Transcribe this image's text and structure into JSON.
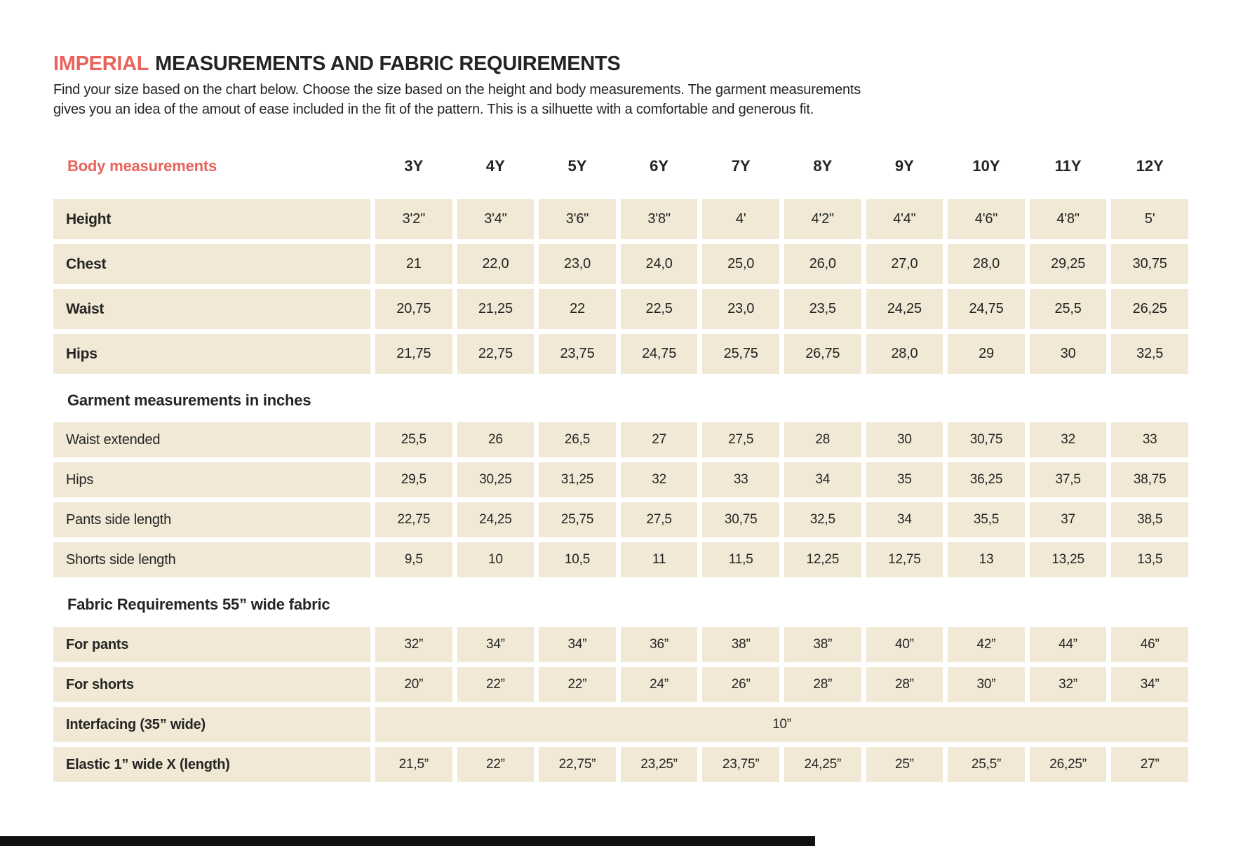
{
  "page": {
    "title": {
      "accent": "IMPERIAL",
      "rest": "MEASUREMENTS AND FABRIC REQUIREMENTS"
    },
    "intro": {
      "line1": "Find your size based on the chart below. Choose the size based on the height and body measurements. The garment measurements",
      "line2": "gives you an idea of the amout of ease included in the fit of the pattern. This is a silhuette with a comfortable and generous fit."
    }
  },
  "colors": {
    "accent_red": "#e9635c",
    "cell_beige": "#f1e9d5",
    "text_dark": "#242424",
    "footer_bar_black": "#111111"
  },
  "chart_data": {
    "type": "table",
    "title": "IMPERIAL MEASUREMENTS AND FABRIC REQUIREMENTS",
    "columns_label": "Body measurements",
    "sizes": [
      "3Y",
      "4Y",
      "5Y",
      "6Y",
      "7Y",
      "8Y",
      "9Y",
      "10Y",
      "11Y",
      "12Y"
    ],
    "sections": [
      {
        "kind": "body",
        "heading": null,
        "rows": [
          {
            "label": "Height",
            "bold": true,
            "values": [
              "3'2\"",
              "3'4\"",
              "3'6\"",
              "3'8\"",
              "4'",
              "4'2\"",
              "4'4\"",
              "4'6\"",
              "4'8\"",
              "5'"
            ]
          },
          {
            "label": "Chest",
            "bold": true,
            "values": [
              "21",
              "22,0",
              "23,0",
              "24,0",
              "25,0",
              "26,0",
              "27,0",
              "28,0",
              "29,25",
              "30,75"
            ]
          },
          {
            "label": "Waist",
            "bold": true,
            "values": [
              "20,75",
              "21,25",
              "22",
              "22,5",
              "23,0",
              "23,5",
              "24,25",
              "24,75",
              "25,5",
              "26,25"
            ]
          },
          {
            "label": "Hips",
            "bold": true,
            "values": [
              "21,75",
              "22,75",
              "23,75",
              "24,75",
              "25,75",
              "26,75",
              "28,0",
              "29",
              "30",
              "32,5"
            ]
          }
        ]
      },
      {
        "kind": "garment",
        "heading": "Garment measurements in inches",
        "rows": [
          {
            "label": "Waist extended",
            "bold": false,
            "values": [
              "25,5",
              "26",
              "26,5",
              "27",
              "27,5",
              "28",
              "30",
              "30,75",
              "32",
              "33"
            ]
          },
          {
            "label": "Hips",
            "bold": false,
            "values": [
              "29,5",
              "30,25",
              "31,25",
              "32",
              "33",
              "34",
              "35",
              "36,25",
              "37,5",
              "38,75"
            ]
          },
          {
            "label": "Pants side length",
            "bold": false,
            "values": [
              "22,75",
              "24,25",
              "25,75",
              "27,5",
              "30,75",
              "32,5",
              "34",
              "35,5",
              "37",
              "38,5"
            ]
          },
          {
            "label": "Shorts side length",
            "bold": false,
            "values": [
              "9,5",
              "10",
              "10,5",
              "11",
              "11,5",
              "12,25",
              "12,75",
              "13",
              "13,25",
              "13,5"
            ]
          }
        ]
      },
      {
        "kind": "fabric",
        "heading": "Fabric Requirements 55” wide fabric",
        "rows": [
          {
            "label": "For pants",
            "bold": true,
            "values": [
              "32”",
              "34”",
              "34”",
              "36”",
              "38”",
              "38”",
              "40”",
              "42”",
              "44”",
              "46”"
            ]
          },
          {
            "label": "For shorts",
            "bold": true,
            "values": [
              "20”",
              "22”",
              "22”",
              "24”",
              "26”",
              "28”",
              "28”",
              "30”",
              "32”",
              "34”"
            ]
          },
          {
            "label": "Interfacing (35” wide)",
            "bold": true,
            "span_value": "10”"
          },
          {
            "label": "Elastic 1” wide X (length)",
            "bold": true,
            "values": [
              "21,5”",
              "22”",
              "22,75”",
              "23,25”",
              "23,75”",
              "24,25”",
              "25”",
              "25,5”",
              "26,25”",
              "27”"
            ]
          }
        ]
      }
    ]
  }
}
